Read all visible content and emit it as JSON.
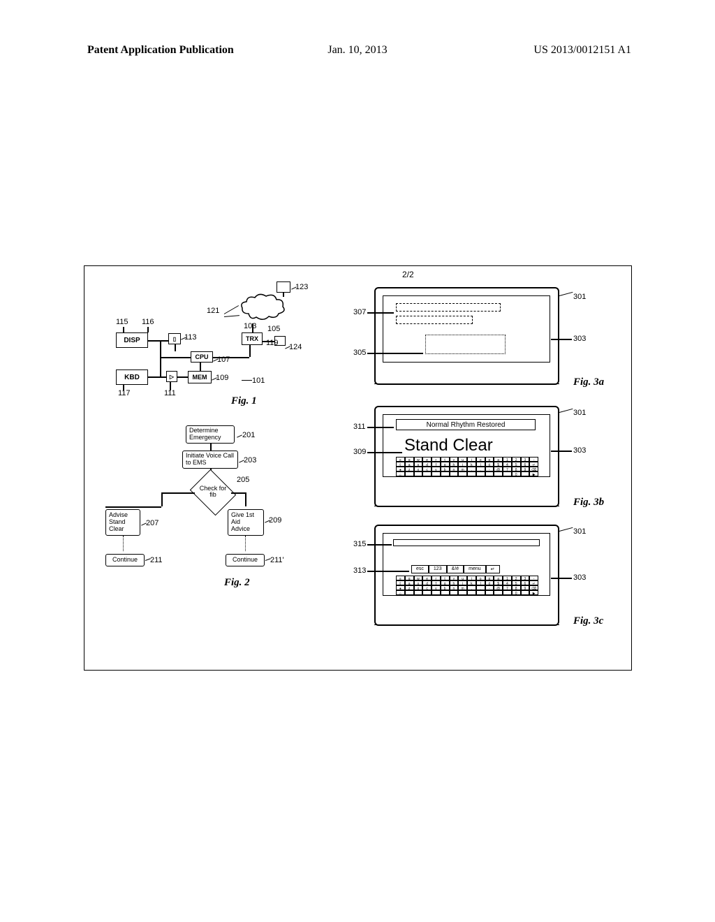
{
  "header": {
    "left": "Patent Application Publication",
    "center": "Jan. 10, 2013",
    "right": "US 2013/0012151 A1"
  },
  "figure": {
    "sheet_label": "2/2",
    "captions": {
      "fig1": "Fig. 1",
      "fig2": "Fig. 2",
      "fig3a": "Fig. 3a",
      "fig3b": "Fig. 3b",
      "fig3c": "Fig. 3c"
    }
  },
  "fig1": {
    "blocks": {
      "disp": "DISP",
      "kbd": "KBD",
      "cpu": "CPU",
      "mem": "MEM",
      "trx": "TRX"
    },
    "refs": {
      "r101": "101",
      "r103": "103",
      "r105": "105",
      "r107": "107",
      "r109": "109",
      "r111": "111",
      "r113": "113",
      "r115": "115",
      "r116": "116",
      "r117": "117",
      "r119": "119",
      "r121": "121",
      "r123": "123",
      "r124": "124"
    }
  },
  "fig2": {
    "steps": {
      "determine": "Determine\nEmergency",
      "initiate": "Initiate Voice\nCall to EMS",
      "check": "Check\nfor fib",
      "advise": "Advise\nStand\nClear",
      "give": "Give\n1st Aid\nAdvice",
      "cont_l": "Continue",
      "cont_r": "Continue"
    },
    "refs": {
      "r201": "201",
      "r203": "203",
      "r205": "205",
      "r207": "207",
      "r209": "209",
      "r211": "211",
      "r211p": "211'"
    }
  },
  "fig3a": {
    "refs": {
      "r301": "301",
      "r303": "303",
      "r305": "305",
      "r307": "307"
    }
  },
  "fig3b": {
    "banner": "Normal Rhythm Restored",
    "big": "Stand Clear",
    "refs": {
      "r301": "301",
      "r303": "303",
      "r309": "309",
      "r311": "311"
    },
    "kbd_rows": [
      [
        "≡",
        "q",
        "w",
        "e",
        "r",
        "t",
        "y",
        "u",
        "i",
        "o",
        "p",
        "a",
        "1",
        "2",
        "3",
        "-"
      ],
      [
        "⇧",
        "a",
        "s",
        "d",
        "f",
        "g",
        "h",
        "j",
        "k",
        "l",
        "ó",
        "$",
        "4",
        "5",
        "6",
        "↵"
      ],
      [
        "●",
        "z",
        "x",
        "c",
        "v",
        "b",
        "n",
        "m",
        ",",
        ".",
        "-",
        "@",
        "7",
        "8",
        "9",
        "⌫"
      ],
      [
        "⌂",
        "",
        "",
        "",
        "",
        "",
        "",
        "",
        "",
        "",
        "",
        "",
        "",
        "0",
        "",
        "▶"
      ]
    ]
  },
  "fig3c": {
    "refs": {
      "r301": "301",
      "r303": "303",
      "r313": "313",
      "r315": "315"
    },
    "toolbar": [
      "esc",
      "123",
      "&!é",
      "menu",
      "↵"
    ],
    "kbd_rows": [
      [
        "≡",
        "q",
        "w",
        "e",
        "r",
        "t",
        "y",
        "u",
        "i",
        "o",
        "p",
        "a",
        "1",
        "2",
        "3",
        "-"
      ],
      [
        "⇧",
        "a",
        "s",
        "d",
        "f",
        "g",
        "h",
        "j",
        "k",
        "l",
        "ó",
        "$",
        "4",
        "5",
        "6",
        "↵"
      ],
      [
        "●",
        "z",
        "x",
        "c",
        "v",
        "b",
        "n",
        "m",
        ",",
        ".",
        "-",
        "@",
        "7",
        "8",
        "9",
        "⌫"
      ],
      [
        "⌂",
        "",
        "",
        "",
        "",
        "",
        "",
        "",
        "",
        "",
        "",
        "",
        "",
        "0",
        "",
        "▶"
      ]
    ]
  },
  "style": {
    "colors": {
      "ink": "#000000",
      "paper": "#ffffff"
    },
    "font_serif": "Times New Roman",
    "font_sans": "Arial",
    "header_fontsize_pt": 12,
    "caption_fontsize_pt": 11
  }
}
